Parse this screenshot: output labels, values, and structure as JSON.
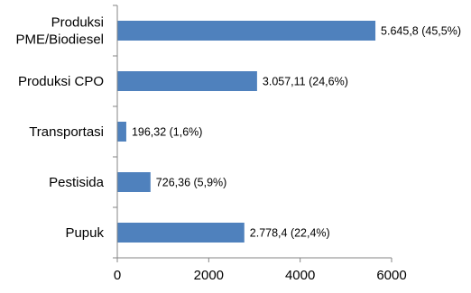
{
  "chart_data": {
    "type": "bar",
    "orientation": "horizontal",
    "title": "",
    "xlabel": "",
    "ylabel": "",
    "categories": [
      [
        "Produksi",
        "PME/Biodiesel"
      ],
      [
        "Produksi CPO"
      ],
      [
        "Transportasi"
      ],
      [
        "Pestisida"
      ],
      [
        "Pupuk"
      ]
    ],
    "values": [
      5645.8,
      3057.11,
      196.32,
      726.36,
      2778.4
    ],
    "data_labels": [
      "5.645,8 (45,5%)",
      "3.057,11 (24,6%)",
      "196,32 (1,6%)",
      "726,36 (5,9%)",
      "2.778,4 (22,4%)"
    ],
    "xlim": [
      0,
      6000
    ],
    "xticks": [
      0,
      2000,
      4000,
      6000
    ],
    "xtick_labels": [
      "0",
      "2000",
      "4000",
      "6000"
    ],
    "grid": false,
    "legend": "none",
    "bar_color": "#4F81BD",
    "axis_color": "#868686"
  }
}
